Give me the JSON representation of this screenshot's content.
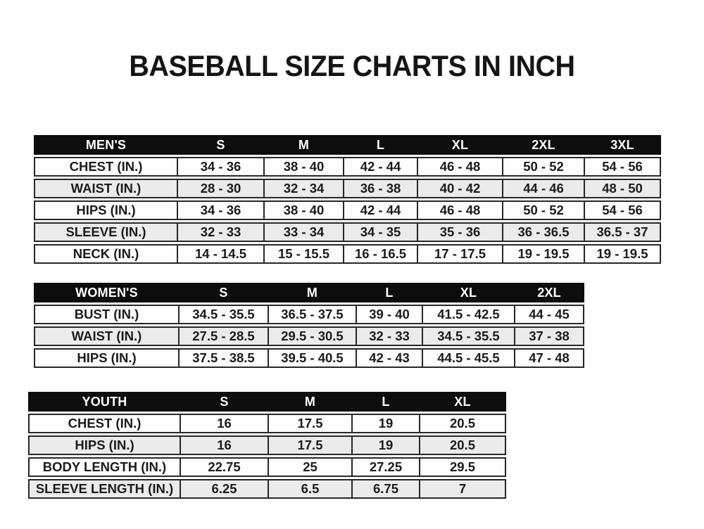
{
  "title": "BASEBALL SIZE CHARTS IN INCH",
  "colors": {
    "header_bg": "#0d0d0d",
    "header_text": "#ffffff",
    "row_bg": "#fdfdfd",
    "row_alt_bg": "#ebebeb",
    "border": "#272727",
    "text": "#1b1b1b",
    "page_bg": "#ffffff"
  },
  "tables": [
    {
      "id": "mens",
      "header": [
        "MEN'S",
        "S",
        "M",
        "L",
        "XL",
        "2XL",
        "3XL"
      ],
      "rows": [
        {
          "label": "CHEST (IN.)",
          "values": [
            "34 - 36",
            "38 - 40",
            "42 - 44",
            "46 - 48",
            "50 - 52",
            "54 - 56"
          ]
        },
        {
          "label": "WAIST (IN.)",
          "values": [
            "28 - 30",
            "32 - 34",
            "36 - 38",
            "40 - 42",
            "44 - 46",
            "48 - 50"
          ]
        },
        {
          "label": "HIPS (IN.)",
          "values": [
            "34 - 36",
            "38 - 40",
            "42 - 44",
            "46 - 48",
            "50 - 52",
            "54 - 56"
          ]
        },
        {
          "label": "SLEEVE (IN.)",
          "values": [
            "32 - 33",
            "33 - 34",
            "34 - 35",
            "35 - 36",
            "36 - 36.5",
            "36.5 - 37"
          ]
        },
        {
          "label": "NECK (IN.)",
          "values": [
            "14 - 14.5",
            "15 - 15.5",
            "16 - 16.5",
            "17 - 17.5",
            "19 - 19.5",
            "19 - 19.5"
          ]
        }
      ]
    },
    {
      "id": "womens",
      "header": [
        "WOMEN'S",
        "S",
        "M",
        "L",
        "XL",
        "2XL"
      ],
      "rows": [
        {
          "label": "BUST (IN.)",
          "values": [
            "34.5 - 35.5",
            "36.5 - 37.5",
            "39 - 40",
            "41.5 - 42.5",
            "44 - 45"
          ]
        },
        {
          "label": "WAIST (IN.)",
          "values": [
            "27.5 - 28.5",
            "29.5 - 30.5",
            "32 - 33",
            "34.5 - 35.5",
            "37 - 38"
          ]
        },
        {
          "label": "HIPS (IN.)",
          "values": [
            "37.5 - 38.5",
            "39.5 - 40.5",
            "42 - 43",
            "44.5 - 45.5",
            "47 - 48"
          ]
        }
      ]
    },
    {
      "id": "youth",
      "header": [
        "YOUTH",
        "S",
        "M",
        "L",
        "XL"
      ],
      "rows": [
        {
          "label": "CHEST (IN.)",
          "values": [
            "16",
            "17.5",
            "19",
            "20.5"
          ]
        },
        {
          "label": "HIPS (IN.)",
          "values": [
            "16",
            "17.5",
            "19",
            "20.5"
          ]
        },
        {
          "label": "BODY LENGTH (IN.)",
          "values": [
            "22.75",
            "25",
            "27.25",
            "29.5"
          ]
        },
        {
          "label": "SLEEVE LENGTH (IN.)",
          "values": [
            "6.25",
            "6.5",
            "6.75",
            "7"
          ]
        }
      ]
    }
  ]
}
